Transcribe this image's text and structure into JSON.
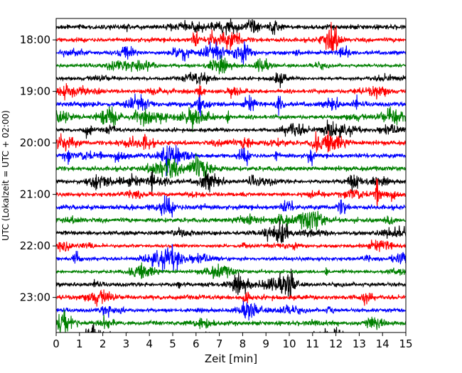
{
  "chart_data": {
    "type": "line",
    "chart_kind": "helicorder (seismogram drum plot)",
    "xlabel": "Zeit  [min]",
    "ylabel": "UTC (Lokalzeit = UTC + 02:00)",
    "x_ticks": [
      "0",
      "1",
      "2",
      "3",
      "4",
      "5",
      "6",
      "7",
      "8",
      "9",
      "10",
      "11",
      "12",
      "13",
      "14",
      "15"
    ],
    "xlim": [
      0,
      15
    ],
    "y_ticks": [
      "18:00",
      "19:00",
      "20:00",
      "21:00",
      "22:00",
      "23:00"
    ],
    "y_range": [
      "17:45",
      "23:59"
    ],
    "trace_interval_minutes": 15,
    "trace_start_times": [
      "17:45",
      "18:00",
      "18:15",
      "18:30",
      "18:45",
      "19:00",
      "19:15",
      "19:30",
      "19:45",
      "20:00",
      "20:15",
      "20:30",
      "20:45",
      "21:00",
      "21:15",
      "21:30",
      "21:45",
      "22:00",
      "22:15",
      "22:30",
      "22:45",
      "23:00",
      "23:15",
      "23:30",
      "23:45"
    ],
    "color_cycle": [
      "#ff0000",
      "#0000ff",
      "#008000",
      "#000000"
    ],
    "first_trace_color": "#000000",
    "grid": false,
    "legend": "none"
  }
}
